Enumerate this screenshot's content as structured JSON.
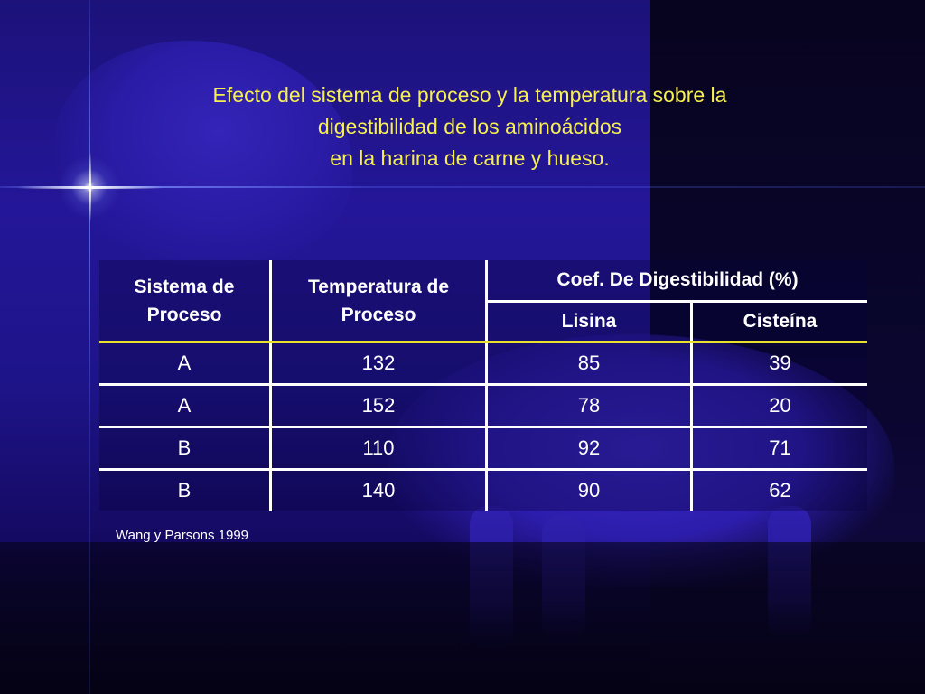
{
  "slide": {
    "title_lines": [
      "Efecto del sistema de proceso y la temperatura sobre la",
      "digestibilidad de los aminoácidos",
      "en la harina de carne y hueso."
    ],
    "table": {
      "header": {
        "col1_line1": "Sistema de",
        "col1_line2": "Proceso",
        "col2_line1": "Temperatura de",
        "col2_line2": "Proceso",
        "group": "Coef. De Digestibilidad (%)",
        "sub1": "Lisina",
        "sub2": "Cisteína"
      },
      "rows": [
        [
          "A",
          "132",
          "85",
          "39"
        ],
        [
          "A",
          "152",
          "78",
          "20"
        ],
        [
          "B",
          "110",
          "92",
          "71"
        ],
        [
          "B",
          "140",
          "90",
          "62"
        ]
      ]
    },
    "source": "Wang y Parsons 1999",
    "colors": {
      "title": "#f6ef52",
      "text": "#ffffff",
      "header_rule": "#e8e02a",
      "background": "#1e1489"
    }
  }
}
